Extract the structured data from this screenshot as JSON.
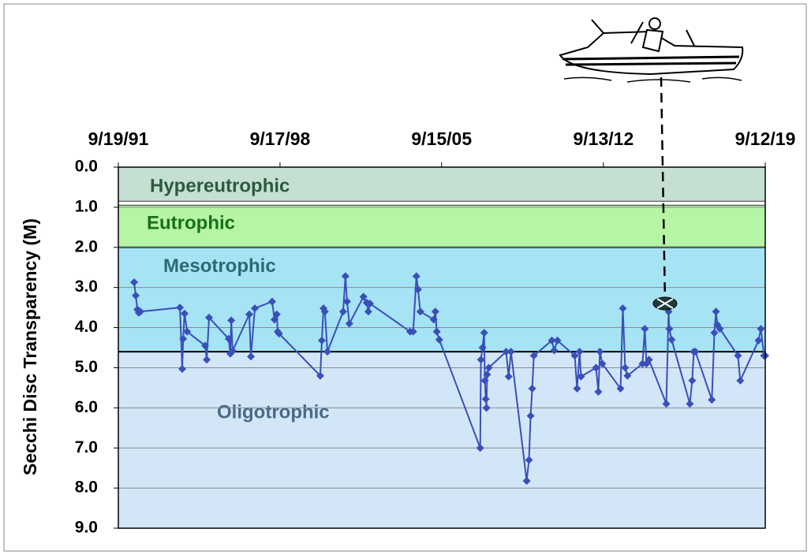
{
  "chart_data": {
    "type": "line",
    "ylabel": "Secchi Disc Transparency (M)",
    "xlim": [
      1991.716,
      2019.7
    ],
    "xticks": [
      {
        "value": 1991.716,
        "label": "9/19/91"
      },
      {
        "value": 1998.71,
        "label": "9/17/98"
      },
      {
        "value": 2005.7,
        "label": "9/15/05"
      },
      {
        "value": 2012.7,
        "label": "9/13/12"
      },
      {
        "value": 2019.7,
        "label": "9/12/19"
      }
    ],
    "ylim": [
      0,
      9
    ],
    "y_inverted": true,
    "yticks": [
      {
        "value": 0,
        "label": "0.0"
      },
      {
        "value": 1,
        "label": "1.0"
      },
      {
        "value": 2,
        "label": "2.0"
      },
      {
        "value": 3,
        "label": "3.0"
      },
      {
        "value": 4,
        "label": "4.0"
      },
      {
        "value": 5,
        "label": "5.0"
      },
      {
        "value": 6,
        "label": "6.0"
      },
      {
        "value": 7,
        "label": "7.0"
      },
      {
        "value": 8,
        "label": "8.0"
      },
      {
        "value": 9,
        "label": "9.0"
      }
    ],
    "grid": true,
    "bands": [
      {
        "name": "Hypereutrophic",
        "from": 0,
        "to": 0.85,
        "color": "#c5e0d2",
        "label_color": "#2c5a3e"
      },
      {
        "name": "Eutrophic",
        "from": 0.95,
        "to": 2.0,
        "color": "#b5f5a5",
        "label_color": "#16701a"
      },
      {
        "name": "Mesotrophic",
        "from": 2.0,
        "to": 4.6,
        "color": "#a6e3f5",
        "label_color": "#2a6b72"
      },
      {
        "name": "Oligotrophic",
        "from": 4.6,
        "to": 9.0,
        "color": "#d3e6f8",
        "label_color": "#4a6a86"
      }
    ],
    "series": [
      {
        "color": "#3a4fb8",
        "x": [
          1992.4,
          1992.47,
          1992.54,
          1992.6,
          1992.67,
          1994.38,
          1994.48,
          1994.52,
          1994.58,
          1994.69,
          1995.47,
          1995.54,
          1995.64,
          1996.49,
          1996.56,
          1996.6,
          1996.66,
          1997.38,
          1997.45,
          1997.62,
          1998.37,
          1998.47,
          1998.57,
          1998.61,
          1998.67,
          2000.45,
          2000.52,
          2000.59,
          2000.65,
          2000.76,
          2001.44,
          2001.54,
          2001.61,
          2001.71,
          2002.32,
          2002.46,
          2002.53,
          2002.6,
          2004.34,
          2004.47,
          2004.61,
          2004.68,
          2004.78,
          2005.36,
          2005.43,
          2005.49,
          2005.6,
          2007.37,
          2007.4,
          2007.47,
          2007.54,
          2007.57,
          2007.61,
          2007.64,
          2007.67,
          2007.74,
          2008.49,
          2008.6,
          2008.7,
          2009.38,
          2009.48,
          2009.55,
          2009.62,
          2009.69,
          2010.47,
          2010.57,
          2010.71,
          2011.46,
          2011.56,
          2011.67,
          2011.73,
          2012.38,
          2012.48,
          2012.55,
          2012.65,
          2013.44,
          2013.54,
          2013.64,
          2013.74,
          2014.39,
          2014.49,
          2014.56,
          2014.67,
          2015.42,
          2015.52,
          2015.55,
          2015.65,
          2016.44,
          2016.54,
          2016.61,
          2016.68,
          2017.39,
          2017.5,
          2017.57,
          2017.63,
          2017.74,
          2018.52,
          2018.62,
          2019.41,
          2019.51,
          2019.65,
          2019.7
        ],
        "values": [
          2.87,
          3.2,
          3.55,
          3.63,
          3.6,
          3.5,
          5.03,
          4.28,
          3.65,
          4.1,
          4.45,
          4.8,
          3.75,
          4.28,
          4.65,
          3.82,
          4.58,
          3.67,
          4.72,
          3.52,
          3.35,
          3.8,
          3.67,
          4.1,
          4.15,
          5.2,
          4.32,
          3.52,
          3.6,
          4.6,
          3.6,
          2.72,
          3.35,
          3.9,
          3.23,
          3.38,
          3.6,
          3.4,
          4.1,
          4.1,
          2.72,
          3.05,
          3.6,
          3.8,
          3.6,
          4.1,
          4.3,
          7.0,
          4.8,
          4.5,
          4.13,
          5.32,
          5.78,
          6.0,
          5.17,
          5.0,
          4.6,
          5.22,
          4.6,
          7.82,
          7.3,
          6.2,
          5.52,
          4.7,
          4.32,
          4.57,
          4.32,
          4.7,
          5.52,
          4.6,
          5.22,
          5.0,
          5.6,
          4.6,
          4.9,
          5.52,
          3.52,
          5.0,
          5.2,
          4.9,
          4.03,
          4.9,
          4.8,
          5.9,
          3.6,
          4.03,
          4.3,
          5.9,
          5.32,
          4.6,
          4.6,
          5.8,
          4.13,
          3.6,
          3.93,
          4.03,
          4.7,
          5.32,
          4.32,
          4.03,
          4.7,
          4.7
        ]
      }
    ]
  }
}
